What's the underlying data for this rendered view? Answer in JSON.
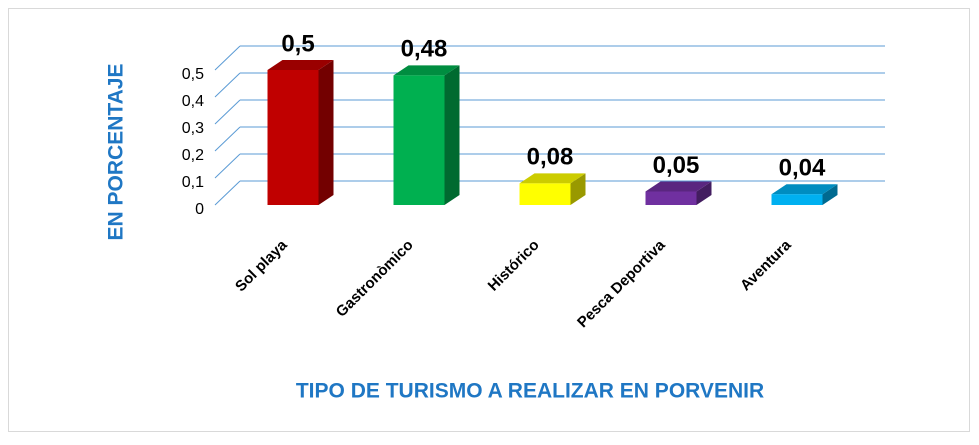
{
  "chart_data": {
    "type": "bar3d",
    "categories": [
      "Sol playa",
      "Gastronòmico",
      "Histórico",
      "Pesca Deportiva",
      "Aventura"
    ],
    "values": [
      0.5,
      0.48,
      0.08,
      0.05,
      0.04
    ],
    "value_labels": [
      "0,5",
      "0,48",
      "0,08",
      "0,05",
      "0,04"
    ],
    "colors": [
      "#c00000",
      "#00b050",
      "#ffff00",
      "#7030a0",
      "#00b0f0"
    ],
    "ylim": [
      0,
      0.5
    ],
    "yticks": [
      {
        "value": 0,
        "label": "0"
      },
      {
        "value": 0.1,
        "label": "0,1"
      },
      {
        "value": 0.2,
        "label": "0,2"
      },
      {
        "value": 0.3,
        "label": "0,3"
      },
      {
        "value": 0.4,
        "label": "0,4"
      },
      {
        "value": 0.5,
        "label": "0,5"
      }
    ],
    "ylabel": "EN PORCENTAJE",
    "xlabel": "TIPO DE TURISMO A REALIZAR EN PORVENIR",
    "grid": true
  }
}
